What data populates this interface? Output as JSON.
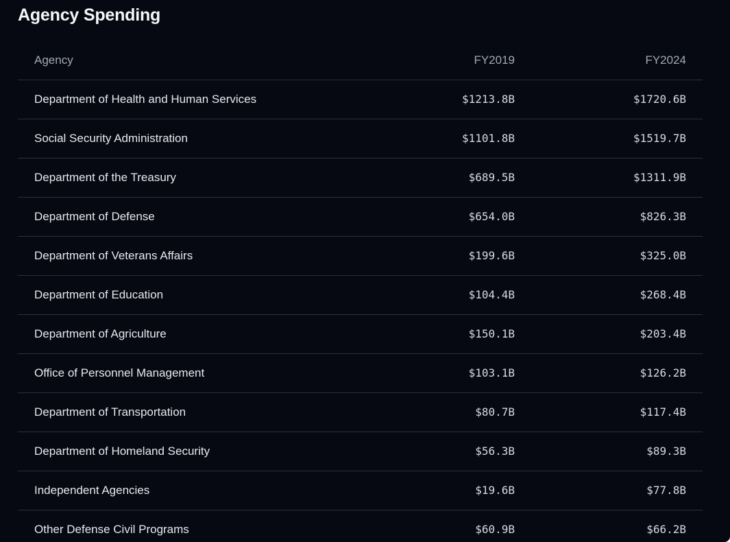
{
  "title": "Agency Spending",
  "table": {
    "columns": [
      "Agency",
      "FY2019",
      "FY2024"
    ],
    "rows": [
      {
        "agency": "Department of Health and Human Services",
        "fy2019": "$1213.8B",
        "fy2024": "$1720.6B"
      },
      {
        "agency": "Social Security Administration",
        "fy2019": "$1101.8B",
        "fy2024": "$1519.7B"
      },
      {
        "agency": "Department of the Treasury",
        "fy2019": "$689.5B",
        "fy2024": "$1311.9B"
      },
      {
        "agency": "Department of Defense",
        "fy2019": "$654.0B",
        "fy2024": "$826.3B"
      },
      {
        "agency": "Department of Veterans Affairs",
        "fy2019": "$199.6B",
        "fy2024": "$325.0B"
      },
      {
        "agency": "Department of Education",
        "fy2019": "$104.4B",
        "fy2024": "$268.4B"
      },
      {
        "agency": "Department of Agriculture",
        "fy2019": "$150.1B",
        "fy2024": "$203.4B"
      },
      {
        "agency": "Office of Personnel Management",
        "fy2019": "$103.1B",
        "fy2024": "$126.2B"
      },
      {
        "agency": "Department of Transportation",
        "fy2019": "$80.7B",
        "fy2024": "$117.4B"
      },
      {
        "agency": "Department of Homeland Security",
        "fy2019": "$56.3B",
        "fy2024": "$89.3B"
      },
      {
        "agency": "Independent Agencies",
        "fy2019": "$19.6B",
        "fy2024": "$77.8B"
      },
      {
        "agency": "Other Defense Civil Programs",
        "fy2019": "$60.9B",
        "fy2024": "$66.2B"
      }
    ]
  }
}
